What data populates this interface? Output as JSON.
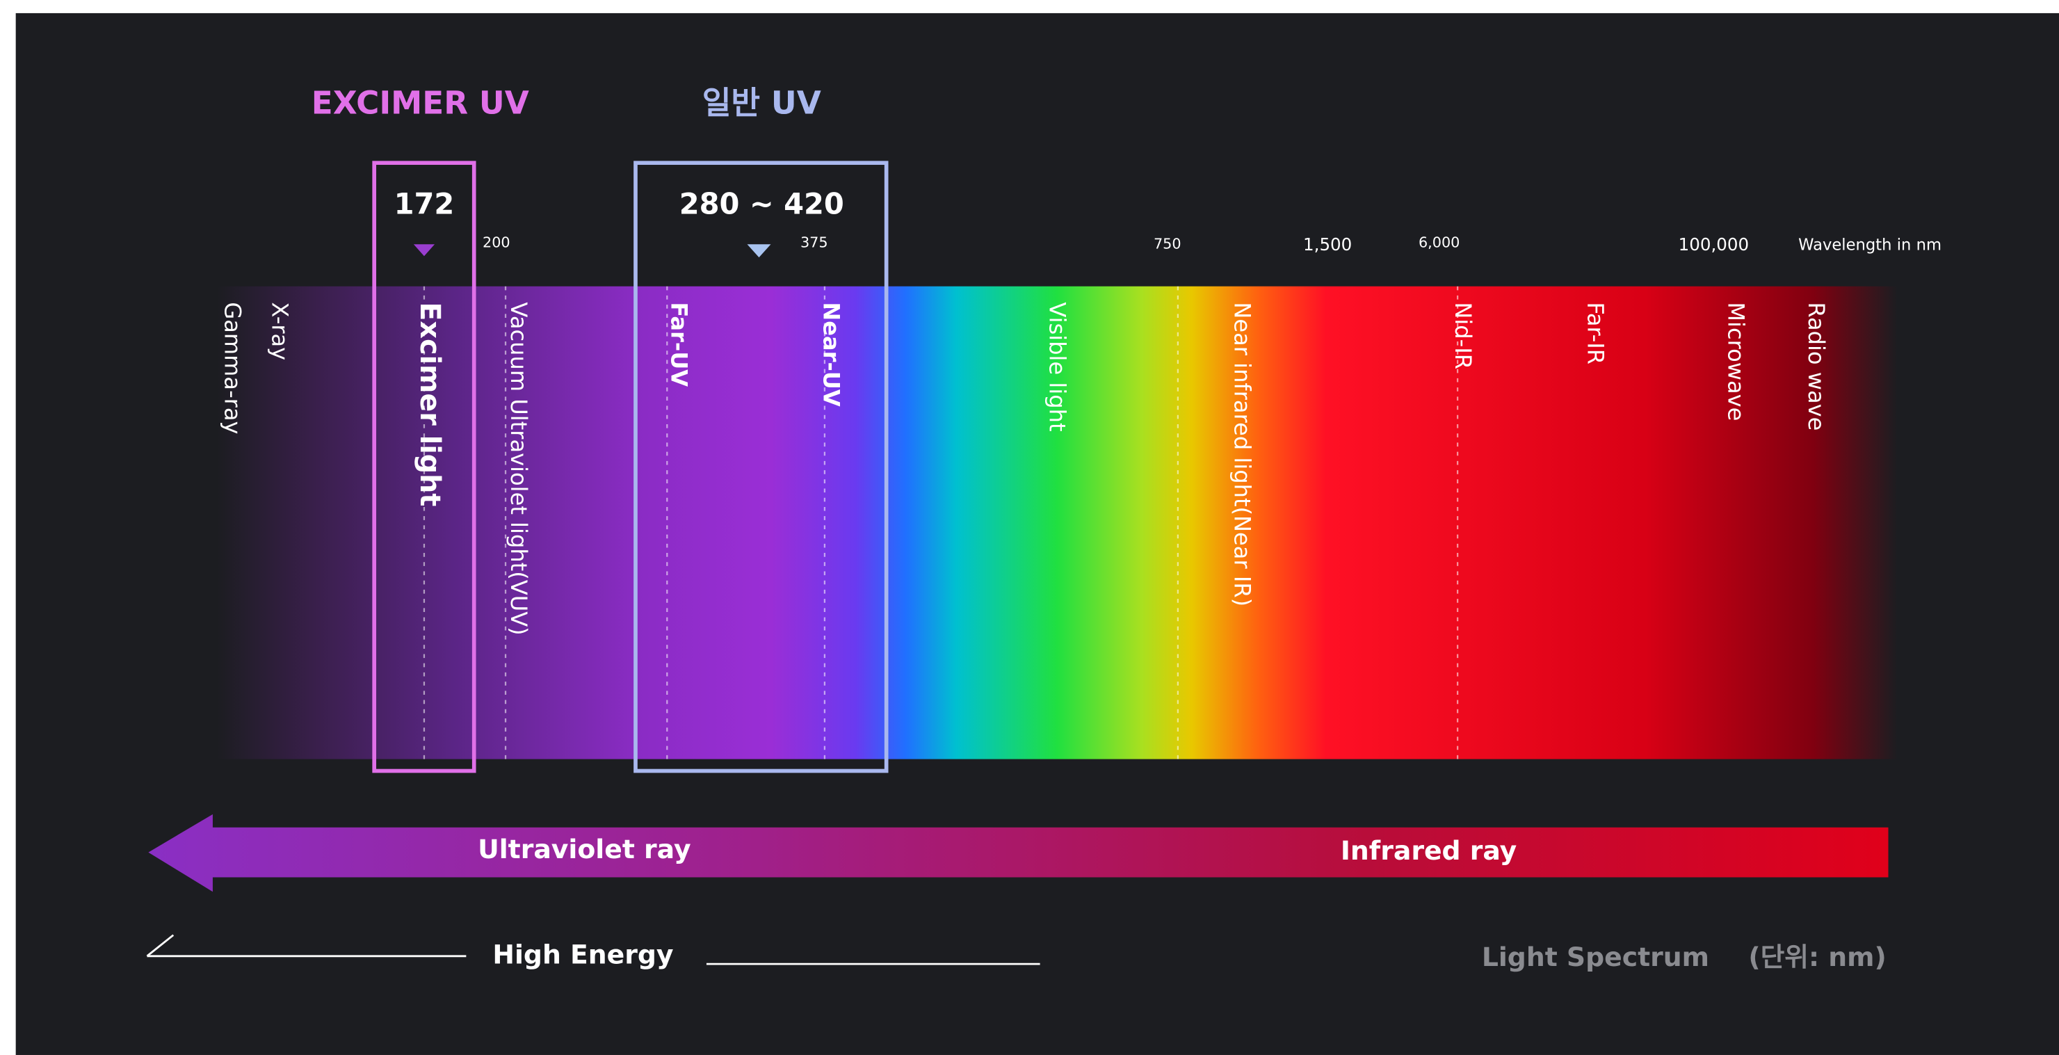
{
  "highlights": [
    {
      "title": "EXCIMER UV",
      "range": "172"
    },
    {
      "title": "일반 UV",
      "range": "280 ~ 420"
    }
  ],
  "wavelength_ticks": [
    "200",
    "375",
    "750",
    "1,500",
    "6,000",
    "100,000"
  ],
  "axis_label": "Wavelength in nm",
  "bands": [
    "X-ray",
    "Gamma-ray",
    "Excimer light",
    "Vacuum Ultraviolet light(VUV)",
    "Far-UV",
    "Near-UV",
    "Visible light",
    "Near infrared light(Near IR)",
    "Nid-IR",
    "Far-IR",
    "Microwave",
    "Radio wave"
  ],
  "arrow": {
    "left": "Ultraviolet ray",
    "right": "Infrared ray"
  },
  "energy": "High Energy",
  "caption": {
    "title": "Light Spectrum",
    "unit": "(단위: nm)"
  }
}
